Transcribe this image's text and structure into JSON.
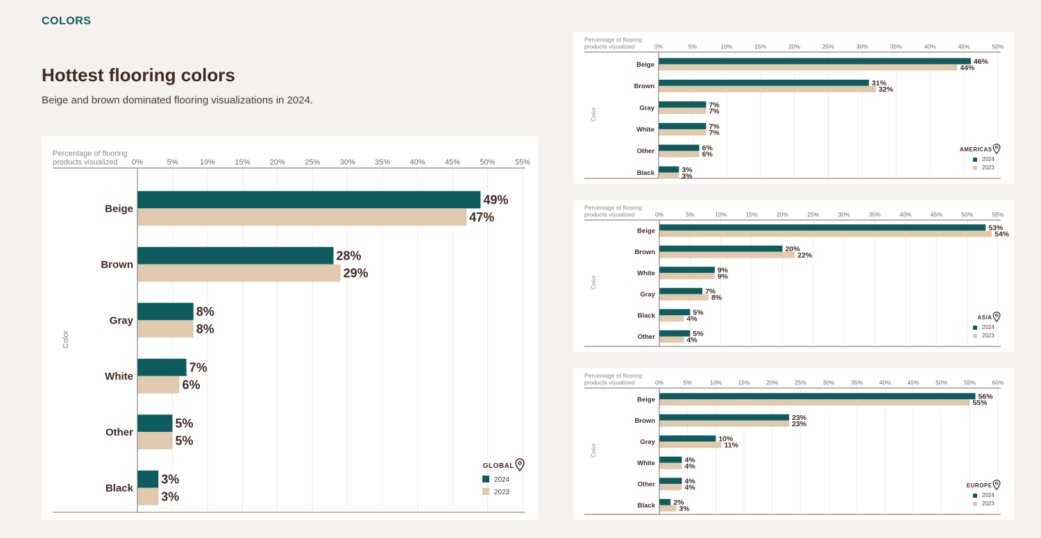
{
  "header": {
    "section_label": "COLORS",
    "title": "Hottest flooring colors",
    "subtitle": "Beige and brown dominated flooring visualizations in 2024."
  },
  "colors": {
    "series_2024": "#0f5c5e",
    "series_2023": "#e0c9ad",
    "accent": "#0f5c5e"
  },
  "chart_data": [
    {
      "id": "global",
      "type": "bar",
      "orientation": "horizontal",
      "region": "GLOBAL",
      "xlabel": "Percentage of flooring products visualized",
      "xlabel_lines": [
        "Percentage of flooring",
        "products visualized"
      ],
      "ylabel": "Color",
      "xlim": [
        0,
        55
      ],
      "xticks": [
        "0%",
        "5%",
        "10%",
        "15%",
        "20%",
        "25%",
        "30%",
        "35%",
        "40%",
        "45%",
        "50%",
        "55%"
      ],
      "categories": [
        "Beige",
        "Brown",
        "Gray",
        "White",
        "Other",
        "Black"
      ],
      "series": [
        {
          "name": "2024",
          "values": [
            49,
            28,
            8,
            7,
            5,
            3
          ]
        },
        {
          "name": "2023",
          "values": [
            47,
            29,
            8,
            6,
            5,
            3
          ]
        }
      ],
      "legend": "bottom-right"
    },
    {
      "id": "americas",
      "type": "bar",
      "orientation": "horizontal",
      "region": "AMERICAS",
      "xlabel": "Percentage of flooring products visualized",
      "xlabel_lines": [
        "Percentage of flooring",
        "products visualized"
      ],
      "ylabel": "Color",
      "xlim": [
        0,
        50
      ],
      "xticks": [
        "0%",
        "5%",
        "10%",
        "15%",
        "20%",
        "25%",
        "30%",
        "35%",
        "40%",
        "45%",
        "50%"
      ],
      "categories": [
        "Beige",
        "Brown",
        "Gray",
        "White",
        "Other",
        "Black"
      ],
      "series": [
        {
          "name": "2024",
          "values": [
            46,
            31,
            7,
            7,
            6,
            3
          ]
        },
        {
          "name": "2023",
          "values": [
            44,
            32,
            7,
            7,
            6,
            3
          ]
        }
      ],
      "legend": "bottom-right"
    },
    {
      "id": "asia",
      "type": "bar",
      "orientation": "horizontal",
      "region": "ASIA",
      "xlabel": "Percentage of flooring products visualized",
      "xlabel_lines": [
        "Percentage of flooring",
        "products visualized"
      ],
      "ylabel": "Color",
      "xlim": [
        0,
        55
      ],
      "xticks": [
        "0%",
        "5%",
        "10%",
        "15%",
        "20%",
        "25%",
        "30%",
        "35%",
        "40%",
        "45%",
        "50%",
        "55%"
      ],
      "categories": [
        "Beige",
        "Brown",
        "White",
        "Gray",
        "Black",
        "Other"
      ],
      "series": [
        {
          "name": "2024",
          "values": [
            53,
            20,
            9,
            7,
            5,
            5
          ]
        },
        {
          "name": "2023",
          "values": [
            54,
            22,
            9,
            8,
            4,
            4
          ]
        }
      ],
      "legend": "bottom-right"
    },
    {
      "id": "europe",
      "type": "bar",
      "orientation": "horizontal",
      "region": "EUROPE",
      "xlabel": "Percentage of flooring products visualized",
      "xlabel_lines": [
        "Percentage of flooring",
        "products visualized"
      ],
      "ylabel": "Color",
      "xlim": [
        0,
        60
      ],
      "xticks": [
        "0%",
        "5%",
        "10%",
        "15%",
        "20%",
        "25%",
        "30%",
        "35%",
        "40%",
        "45%",
        "50%",
        "55%",
        "60%"
      ],
      "categories": [
        "Beige",
        "Brown",
        "Gray",
        "White",
        "Other",
        "Black"
      ],
      "series": [
        {
          "name": "2024",
          "values": [
            56,
            23,
            10,
            4,
            4,
            2
          ]
        },
        {
          "name": "2023",
          "values": [
            55,
            23,
            11,
            4,
            4,
            3
          ]
        }
      ],
      "legend": "bottom-right"
    }
  ]
}
